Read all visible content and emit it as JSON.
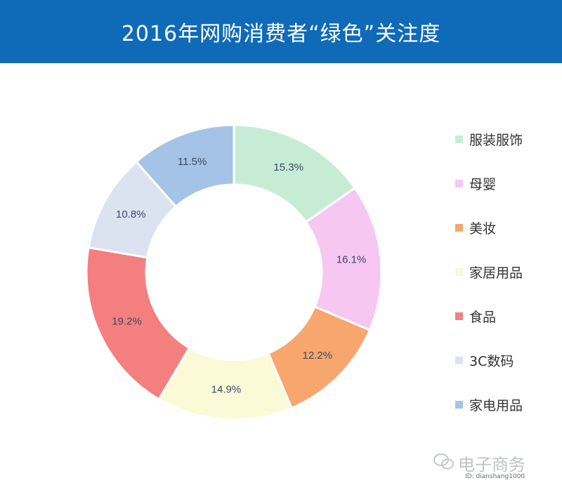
{
  "header": {
    "title": "2016年网购消费者“绿色”关注度",
    "background_color": "#0f6ab8"
  },
  "chart_data": {
    "type": "pie",
    "donut": true,
    "title": "2016年网购消费者“绿色”关注度",
    "categories": [
      "服装服饰",
      "母婴",
      "美妆",
      "家居用品",
      "食品",
      "3C数码",
      "家电用品"
    ],
    "values": [
      15.3,
      16.1,
      12.2,
      14.9,
      19.2,
      10.8,
      11.5
    ],
    "data_labels": [
      "15.3%",
      "16.1%",
      "12.2%",
      "14.9%",
      "19.2%",
      "10.8%",
      "11.5%"
    ],
    "colors": [
      "#c7ecd6",
      "#f6c7f0",
      "#f7a66d",
      "#fbfad6",
      "#f47f7f",
      "#dbe3f0",
      "#a4c3e6"
    ],
    "legend_position": "right"
  },
  "watermark": {
    "name": "电子商务",
    "id": "ID: dianshang1000",
    "icon": "wechat-icon"
  }
}
